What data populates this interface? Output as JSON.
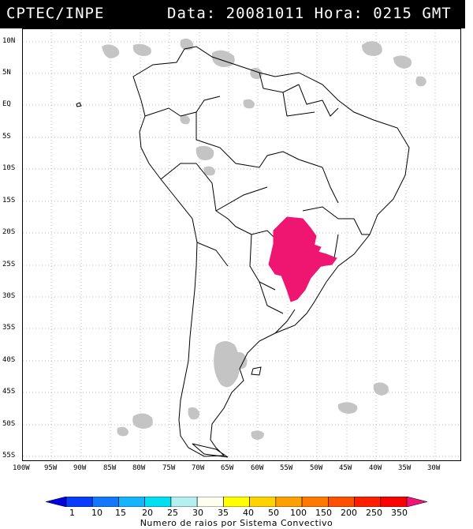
{
  "header": {
    "source": "CPTEC/INPE",
    "datetime": "Data: 20081011 Hora: 0215 GMT"
  },
  "axes": {
    "lat_labels": [
      "10N",
      "5N",
      "EQ",
      "5S",
      "10S",
      "15S",
      "20S",
      "25S",
      "30S",
      "35S",
      "40S",
      "45S",
      "50S",
      "55S"
    ],
    "lon_labels": [
      "100W",
      "95W",
      "90W",
      "85W",
      "80W",
      "75W",
      "70W",
      "65W",
      "60W",
      "55W",
      "50W",
      "45W",
      "40W",
      "35W",
      "30W"
    ]
  },
  "colorbar": {
    "ticks": [
      "1",
      "10",
      "15",
      "20",
      "25",
      "30",
      "35",
      "40",
      "50",
      "100",
      "150",
      "200",
      "250",
      "350"
    ],
    "colors": [
      "#0000e0",
      "#0a3cff",
      "#1478ff",
      "#14b4ff",
      "#00e0f0",
      "#b4f0f0",
      "#fffff0",
      "#ffff00",
      "#ffd200",
      "#ffa000",
      "#ff7800",
      "#ff5000",
      "#ff1e00",
      "#ff0000",
      "#f0147a"
    ],
    "title": "Numero de raios por Sistema Convectivo"
  },
  "colors": {
    "convective_system": "#ee1670",
    "cloud": "#c4c4c4",
    "border": "#000000",
    "grid": "#b0b0b0"
  }
}
